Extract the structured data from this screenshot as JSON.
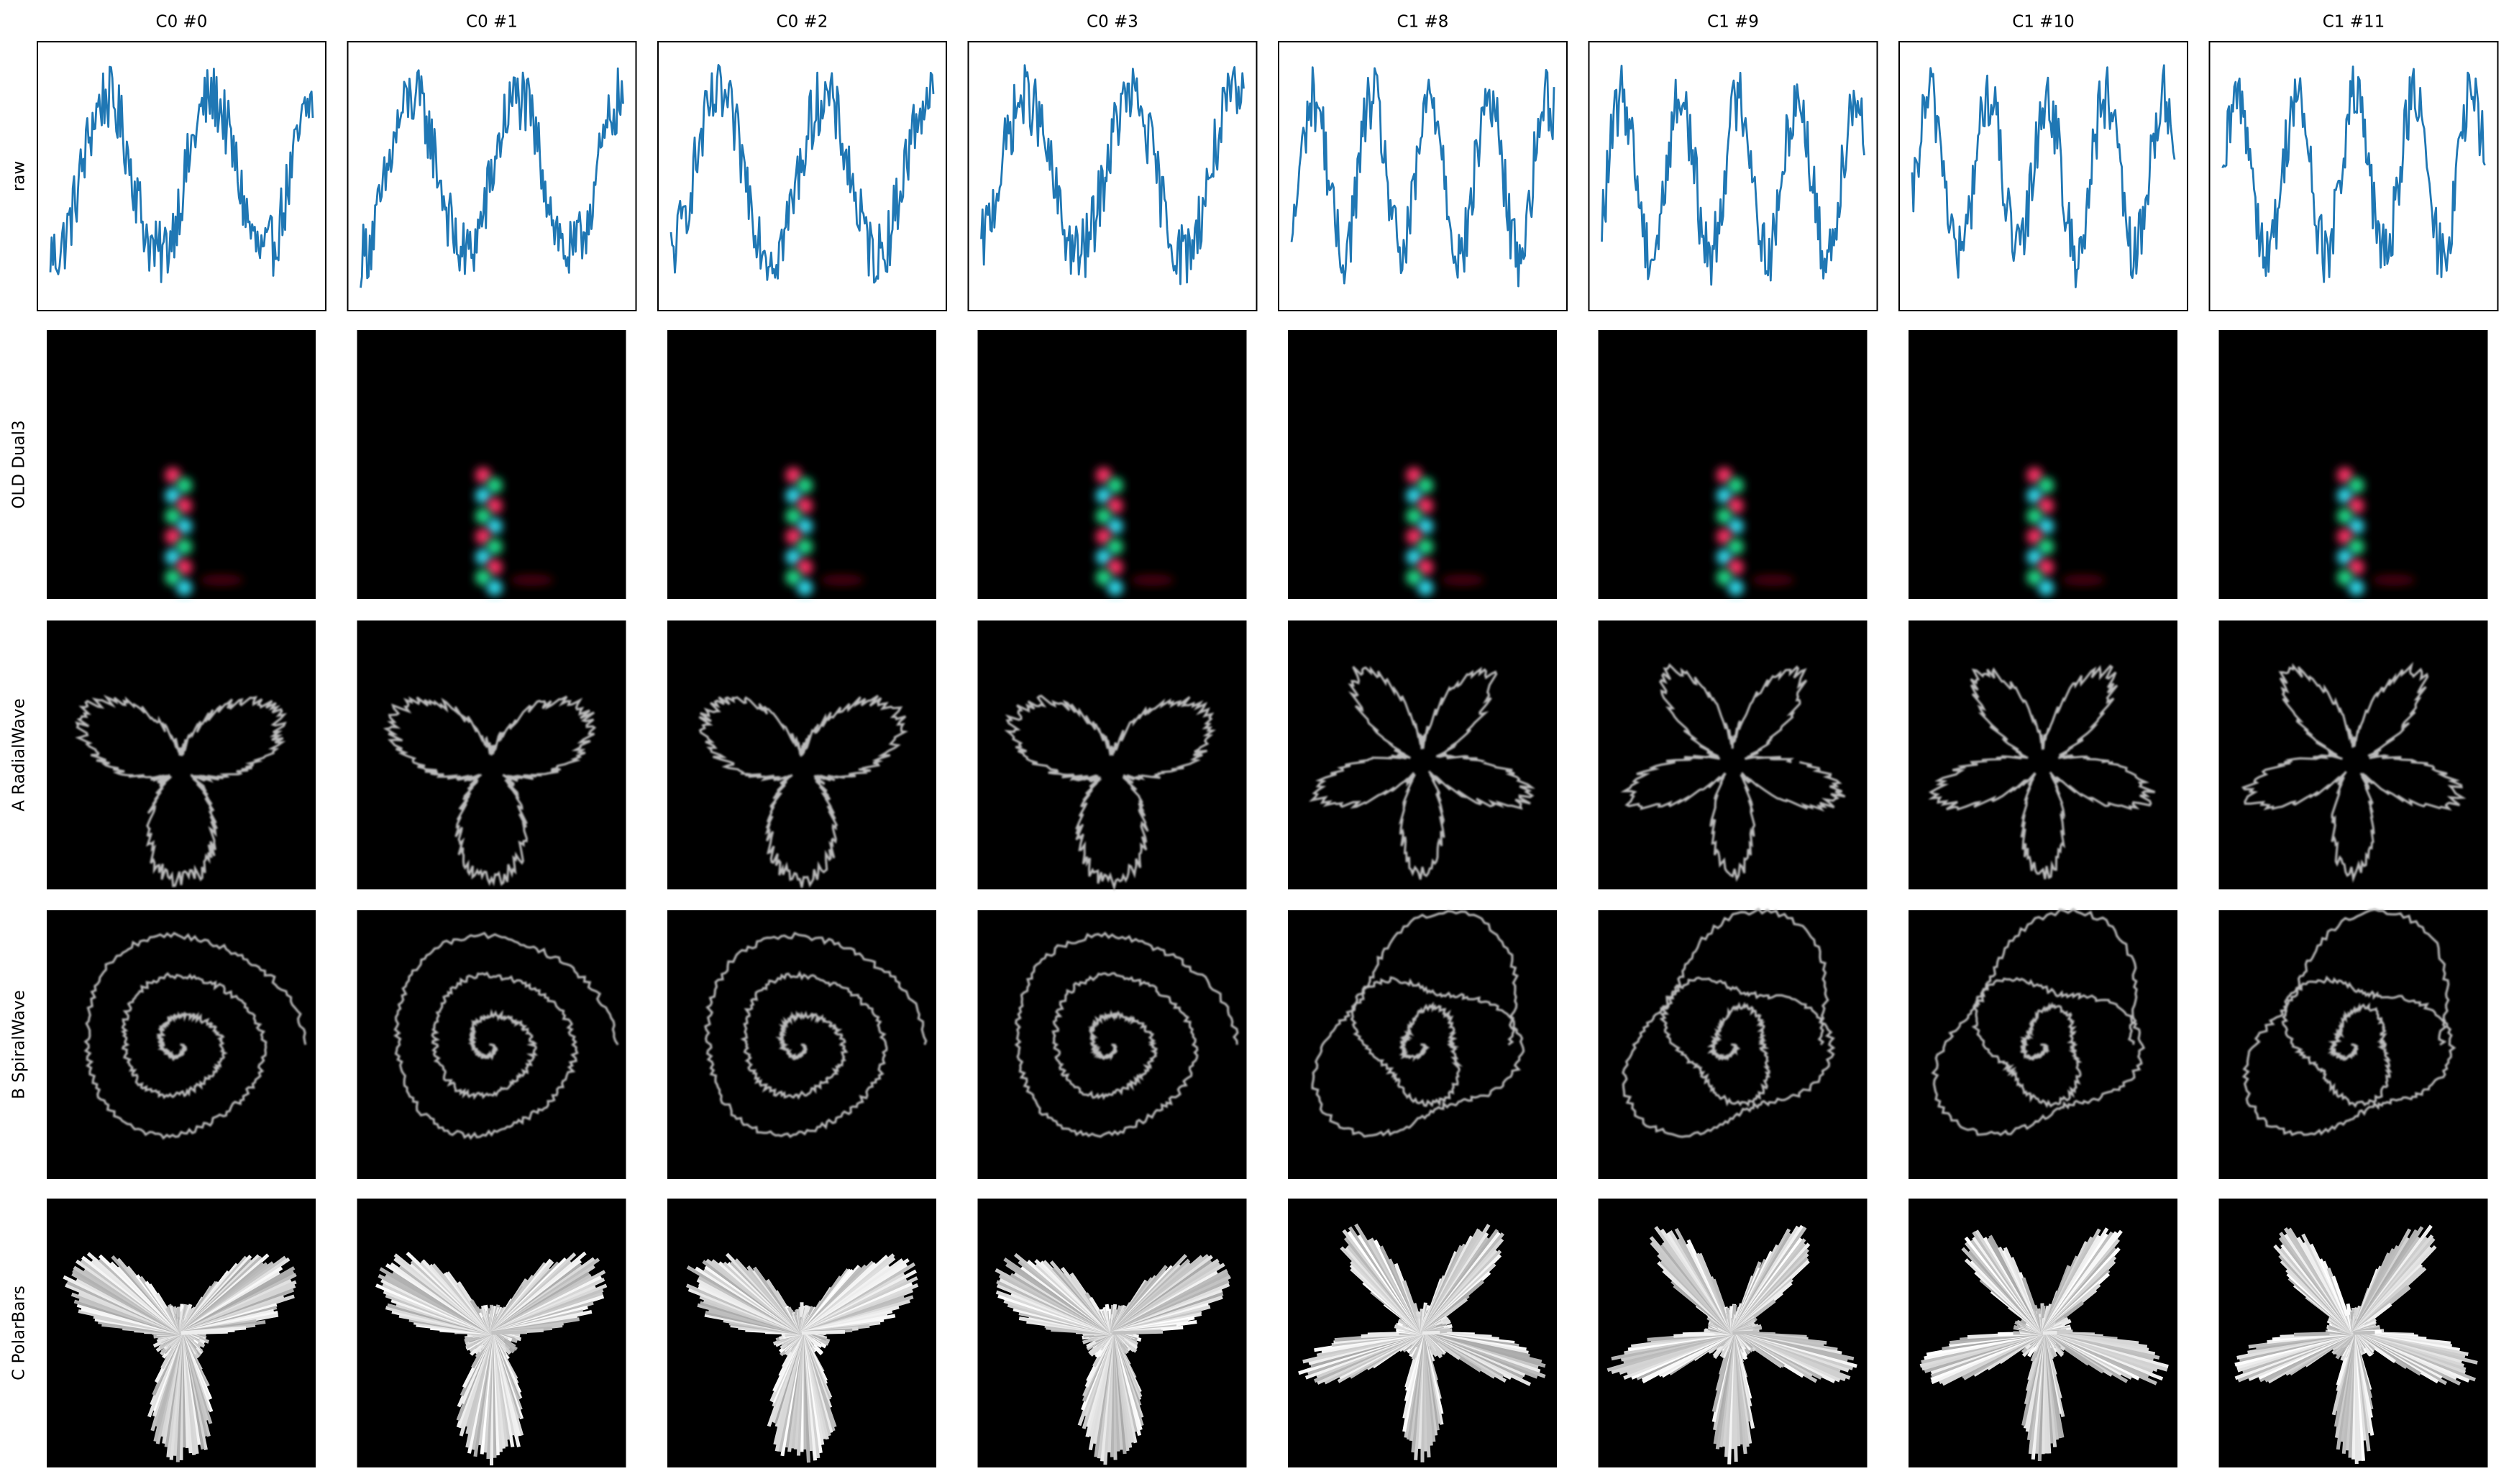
{
  "columns": [
    "C0 #0",
    "C0 #1",
    "C0 #2",
    "C0 #3",
    "C1 #8",
    "C1 #9",
    "C1 #10",
    "C1 #11"
  ],
  "rows": [
    "raw",
    "OLD Dual3",
    "A RadialWave",
    "B SpiralWave",
    "C PolarBars"
  ]
}
